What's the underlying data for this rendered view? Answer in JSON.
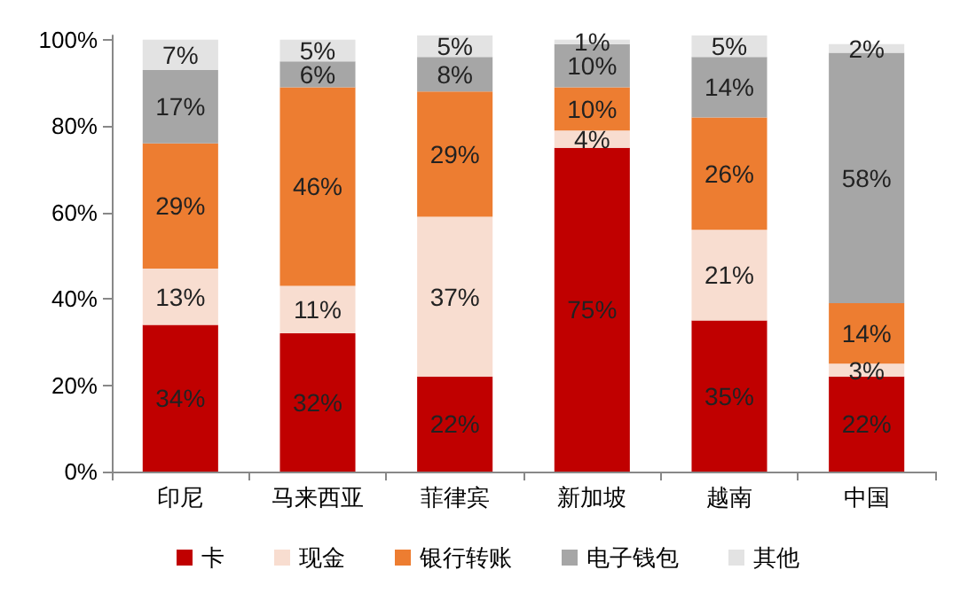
{
  "chart_data": {
    "type": "bar",
    "stacked": true,
    "categories": [
      "印尼",
      "马来西亚",
      "菲律宾",
      "新加坡",
      "越南",
      "中国"
    ],
    "series": [
      {
        "name": "卡",
        "color": "#c00000",
        "values": [
          34,
          32,
          22,
          75,
          35,
          22
        ],
        "value_labels": [
          "34%",
          "32%",
          "22%",
          "75%",
          "35%",
          "22%"
        ]
      },
      {
        "name": "现金",
        "color": "#f8ddd0",
        "values": [
          13,
          11,
          37,
          4,
          21,
          3
        ],
        "value_labels": [
          "13%",
          "11%",
          "37%",
          "4%",
          "21%",
          "3%"
        ]
      },
      {
        "name": "银行转账",
        "color": "#ed7d31",
        "values": [
          29,
          46,
          29,
          10,
          26,
          14
        ],
        "value_labels": [
          "29%",
          "46%",
          "29%",
          "10%",
          "26%",
          "14%"
        ]
      },
      {
        "name": "电子钱包",
        "color": "#a6a6a6",
        "values": [
          17,
          6,
          8,
          10,
          14,
          58
        ],
        "value_labels": [
          "17%",
          "6%",
          "8%",
          "10%",
          "14%",
          "58%"
        ]
      },
      {
        "name": "其他",
        "color": "#e3e3e3",
        "values": [
          7,
          5,
          5,
          1,
          5,
          2
        ],
        "value_labels": [
          "7%",
          "5%",
          "5%",
          "1%",
          "5%",
          "2%"
        ]
      }
    ],
    "ylim": [
      0,
      101
    ],
    "yticks": [
      {
        "value": 0,
        "label": "0%"
      },
      {
        "value": 20,
        "label": "20%"
      },
      {
        "value": 40,
        "label": "40%"
      },
      {
        "value": 60,
        "label": "60%"
      },
      {
        "value": 80,
        "label": "80%"
      },
      {
        "value": 100,
        "label": "100%"
      }
    ],
    "grid": false,
    "legend": "bottom"
  }
}
